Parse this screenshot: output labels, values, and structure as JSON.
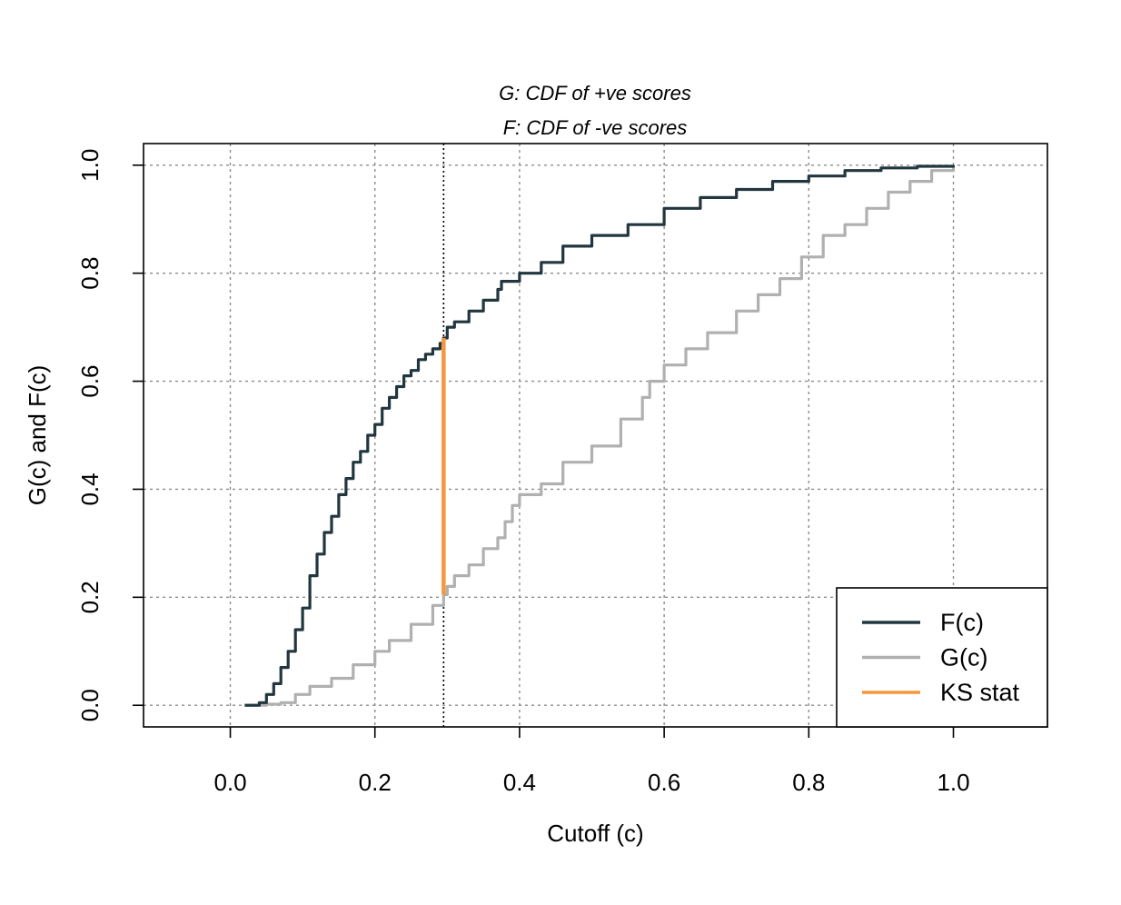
{
  "chart_data": {
    "type": "line",
    "title_lines": [
      "G: CDF of +ve scores",
      "F: CDF of -ve scores"
    ],
    "xlabel": "Cutoff (c)",
    "ylabel": "G(c) and F(c)",
    "xlim": [
      -0.12,
      1.13
    ],
    "ylim": [
      -0.04,
      1.04
    ],
    "x_ticks": [
      "0.0",
      "0.2",
      "0.4",
      "0.6",
      "0.8",
      "1.0"
    ],
    "y_ticks": [
      "0.0",
      "0.2",
      "0.4",
      "0.6",
      "0.8",
      "1.0"
    ],
    "grid": true,
    "legend_position": "bottom-right",
    "series": [
      {
        "name": "F(c)",
        "color": "#22363f",
        "points": [
          [
            0.02,
            0.0
          ],
          [
            0.04,
            0.005
          ],
          [
            0.05,
            0.02
          ],
          [
            0.06,
            0.04
          ],
          [
            0.07,
            0.07
          ],
          [
            0.08,
            0.1
          ],
          [
            0.09,
            0.14
          ],
          [
            0.1,
            0.18
          ],
          [
            0.11,
            0.24
          ],
          [
            0.12,
            0.28
          ],
          [
            0.13,
            0.32
          ],
          [
            0.14,
            0.35
          ],
          [
            0.15,
            0.39
          ],
          [
            0.16,
            0.42
          ],
          [
            0.17,
            0.45
          ],
          [
            0.18,
            0.47
          ],
          [
            0.19,
            0.5
          ],
          [
            0.2,
            0.52
          ],
          [
            0.21,
            0.55
          ],
          [
            0.22,
            0.57
          ],
          [
            0.23,
            0.59
          ],
          [
            0.24,
            0.61
          ],
          [
            0.25,
            0.62
          ],
          [
            0.26,
            0.64
          ],
          [
            0.27,
            0.65
          ],
          [
            0.28,
            0.66
          ],
          [
            0.29,
            0.67
          ],
          [
            0.295,
            0.68
          ],
          [
            0.3,
            0.7
          ],
          [
            0.31,
            0.71
          ],
          [
            0.33,
            0.73
          ],
          [
            0.35,
            0.75
          ],
          [
            0.37,
            0.77
          ],
          [
            0.375,
            0.785
          ],
          [
            0.4,
            0.8
          ],
          [
            0.43,
            0.82
          ],
          [
            0.46,
            0.85
          ],
          [
            0.5,
            0.87
          ],
          [
            0.55,
            0.89
          ],
          [
            0.6,
            0.92
          ],
          [
            0.65,
            0.94
          ],
          [
            0.7,
            0.955
          ],
          [
            0.75,
            0.97
          ],
          [
            0.8,
            0.98
          ],
          [
            0.85,
            0.99
          ],
          [
            0.9,
            0.995
          ],
          [
            0.95,
            0.998
          ],
          [
            1.0,
            1.0
          ]
        ]
      },
      {
        "name": "G(c)",
        "color": "#b0b0b0",
        "points": [
          [
            0.02,
            0.0
          ],
          [
            0.05,
            0.002
          ],
          [
            0.07,
            0.005
          ],
          [
            0.09,
            0.02
          ],
          [
            0.11,
            0.035
          ],
          [
            0.14,
            0.05
          ],
          [
            0.17,
            0.075
          ],
          [
            0.2,
            0.1
          ],
          [
            0.22,
            0.12
          ],
          [
            0.25,
            0.15
          ],
          [
            0.28,
            0.185
          ],
          [
            0.295,
            0.205
          ],
          [
            0.3,
            0.22
          ],
          [
            0.31,
            0.24
          ],
          [
            0.33,
            0.26
          ],
          [
            0.35,
            0.29
          ],
          [
            0.37,
            0.31
          ],
          [
            0.38,
            0.34
          ],
          [
            0.39,
            0.37
          ],
          [
            0.4,
            0.39
          ],
          [
            0.43,
            0.41
          ],
          [
            0.46,
            0.45
          ],
          [
            0.5,
            0.48
          ],
          [
            0.54,
            0.53
          ],
          [
            0.57,
            0.57
          ],
          [
            0.58,
            0.6
          ],
          [
            0.6,
            0.63
          ],
          [
            0.63,
            0.66
          ],
          [
            0.66,
            0.69
          ],
          [
            0.7,
            0.73
          ],
          [
            0.73,
            0.76
          ],
          [
            0.76,
            0.79
          ],
          [
            0.79,
            0.83
          ],
          [
            0.82,
            0.87
          ],
          [
            0.85,
            0.89
          ],
          [
            0.88,
            0.92
          ],
          [
            0.91,
            0.95
          ],
          [
            0.94,
            0.97
          ],
          [
            0.97,
            0.99
          ],
          [
            1.0,
            1.0
          ]
        ]
      }
    ],
    "ks_stat": {
      "name": "KS stat",
      "color": "#f7963c",
      "x": 0.295,
      "y_from": 0.205,
      "y_to": 0.68
    }
  }
}
